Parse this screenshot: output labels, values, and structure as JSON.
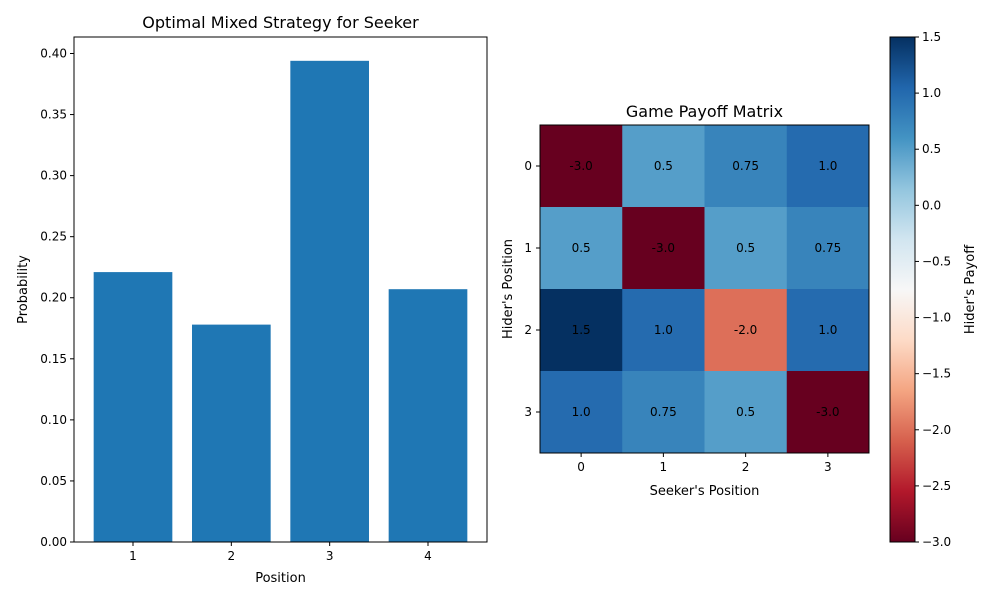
{
  "chart_data": [
    {
      "type": "bar",
      "title": "Optimal Mixed Strategy for Seeker",
      "xlabel": "Position",
      "ylabel": "Probability",
      "categories": [
        "1",
        "2",
        "3",
        "4"
      ],
      "values": [
        0.221,
        0.178,
        0.394,
        0.207
      ],
      "ylim": [
        0,
        0.4135
      ],
      "yticks": [
        "0.00",
        "0.05",
        "0.10",
        "0.15",
        "0.20",
        "0.25",
        "0.30",
        "0.35",
        "0.40"
      ],
      "bar_color": "#1f77b4",
      "grid": false
    },
    {
      "type": "heatmap",
      "title": "Game Payoff Matrix",
      "xlabel": "Seeker's Position",
      "ylabel": "Hider's Position",
      "x_categories": [
        "0",
        "1",
        "2",
        "3"
      ],
      "y_categories": [
        "0",
        "1",
        "2",
        "3"
      ],
      "values": [
        [
          -3.0,
          0.5,
          0.75,
          1.0
        ],
        [
          0.5,
          -3.0,
          0.5,
          0.75
        ],
        [
          1.5,
          1.0,
          -2.0,
          1.0
        ],
        [
          1.0,
          0.75,
          0.5,
          -3.0
        ]
      ],
      "cell_labels": [
        [
          "-3.0",
          "0.5",
          "0.75",
          "1.0"
        ],
        [
          "0.5",
          "-3.0",
          "0.5",
          "0.75"
        ],
        [
          "1.5",
          "1.0",
          "-2.0",
          "1.0"
        ],
        [
          "1.0",
          "0.75",
          "0.5",
          "-3.0"
        ]
      ],
      "colormap": "RdBu",
      "colorbar": {
        "label": "Hider's Payoff",
        "range": [
          -3.0,
          1.5
        ],
        "ticks": [
          1.5,
          1.0,
          0.5,
          0.0,
          -0.5,
          -1.0,
          -1.5,
          -2.0,
          -2.5,
          -3.0
        ],
        "tick_labels": [
          "1.5",
          "1.0",
          "0.5",
          "0.0",
          "−0.5",
          "−1.0",
          "−1.5",
          "−2.0",
          "−2.5",
          "−3.0"
        ]
      }
    }
  ]
}
